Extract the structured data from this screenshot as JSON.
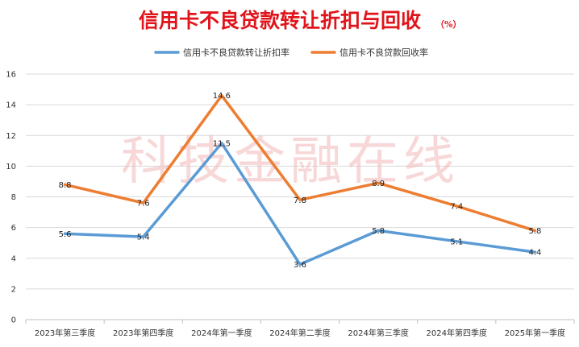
{
  "title": "信用卡不良贷款转让折扣与回收",
  "title_unit": "（%）",
  "watermark": "科技金融在线",
  "colors": {
    "series1": "#5b9bd5",
    "series2": "#ed7d31",
    "title": "#e0141b",
    "grid": "#d9d9d9"
  },
  "chart_data": {
    "type": "line",
    "title": "信用卡不良贷款转让折扣与回收",
    "categories": [
      "2023年第三季度",
      "2023年第四季度",
      "2024年第一季度",
      "2024年第二季度",
      "2024年第三季度",
      "2024年第四季度",
      "2025年第一季度"
    ],
    "series": [
      {
        "name": "信用卡不良贷款转让折扣率",
        "values": [
          5.6,
          5.4,
          11.5,
          3.6,
          5.8,
          5.1,
          4.4
        ],
        "color": "#5b9bd5"
      },
      {
        "name": "信用卡不良贷款回收率",
        "values": [
          8.8,
          7.6,
          14.6,
          7.8,
          8.9,
          7.4,
          5.8
        ],
        "color": "#ed7d31"
      }
    ],
    "ylim": [
      0,
      16
    ],
    "yticks": [
      0,
      2,
      4,
      6,
      8,
      10,
      12,
      14,
      16
    ],
    "grid": true,
    "legend": "top-center"
  }
}
